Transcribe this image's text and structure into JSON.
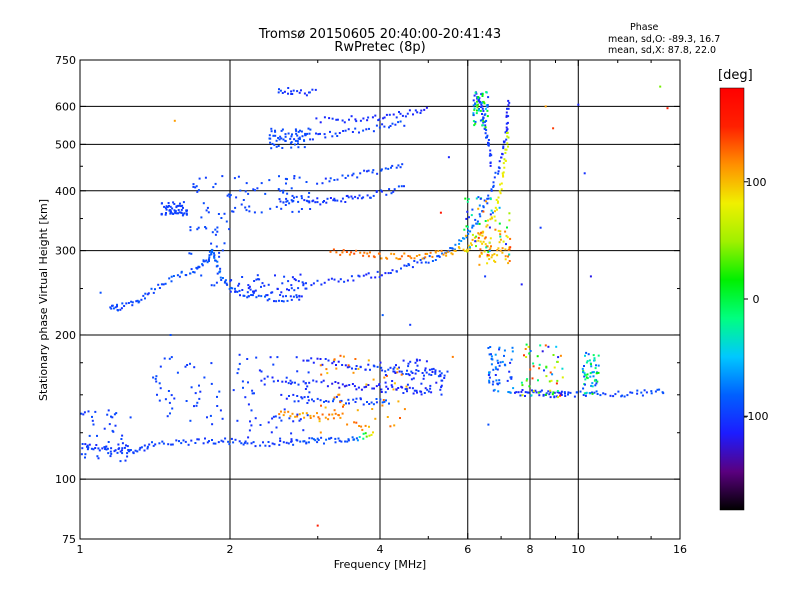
{
  "header": {
    "title_line1": "Tromsø 20150605 20:40:00-20:41:43",
    "title_line2": "RwPretec (8p)"
  },
  "stats": {
    "title": "Phase",
    "line1": "mean, sd,O: -89.3, 16.7",
    "line2": "mean, sd,X:  87.8, 22.0"
  },
  "colorbar": {
    "unit": "[deg]",
    "range": [
      -180,
      180
    ],
    "ticks": [
      {
        "value": 100,
        "label": "100"
      },
      {
        "value": 0,
        "label": "0"
      },
      {
        "value": -100,
        "label": "-100"
      }
    ],
    "colormap": [
      "#000000",
      "#5a007f",
      "#1c1cff",
      "#0060ff",
      "#00c8ff",
      "#00ff80",
      "#00f000",
      "#a0f000",
      "#f0f000",
      "#ff9000",
      "#ff2000",
      "#ff0000"
    ]
  },
  "chart_data": {
    "type": "scatter",
    "xlabel": "Frequency [MHz]",
    "ylabel": "Stationary phase Virtual Height [km]",
    "x_scale": "log",
    "y_scale": "log",
    "xlim": [
      1,
      16
    ],
    "ylim": [
      75,
      750
    ],
    "x_ticks": [
      {
        "value": 1,
        "label": "1"
      },
      {
        "value": 2,
        "label": "2"
      },
      {
        "value": 4,
        "label": "4"
      },
      {
        "value": 6,
        "label": "6"
      },
      {
        "value": 8,
        "label": "8"
      },
      {
        "value": 10,
        "label": "10"
      },
      {
        "value": 16,
        "label": "16"
      }
    ],
    "y_ticks": [
      {
        "value": 75,
        "label": "75"
      },
      {
        "value": 100,
        "label": "100"
      },
      {
        "value": 200,
        "label": "200"
      },
      {
        "value": 300,
        "label": "300"
      },
      {
        "value": 400,
        "label": "400"
      },
      {
        "value": 500,
        "label": "500"
      },
      {
        "value": 600,
        "label": "600"
      },
      {
        "value": 750,
        "label": "750"
      }
    ],
    "x_grid": [
      2,
      4,
      6,
      8,
      10
    ],
    "y_grid": [
      100,
      200,
      300,
      400,
      500,
      600
    ],
    "color_by": "phase [deg]",
    "traces": [
      {
        "points": [
          [
            1.0,
            118
          ],
          [
            1.1,
            116
          ],
          [
            1.2,
            115
          ],
          [
            1.3,
            115
          ],
          [
            1.4,
            118
          ],
          [
            1.6,
            119
          ],
          [
            1.8,
            120
          ],
          [
            2.0,
            120
          ],
          [
            2.2,
            118
          ],
          [
            2.5,
            119
          ],
          [
            2.8,
            120
          ],
          [
            3.0,
            120
          ],
          [
            3.3,
            121
          ],
          [
            3.6,
            122
          ],
          [
            3.9,
            124
          ]
        ],
        "phase": [
          -105,
          -105,
          -100,
          -100,
          -95,
          -95,
          -100,
          -100,
          -100,
          -100,
          -95,
          -90,
          -90,
          -85,
          120
        ]
      },
      {
        "points": [
          [
            1.15,
            228
          ],
          [
            1.2,
            228
          ],
          [
            1.3,
            236
          ],
          [
            1.4,
            248
          ],
          [
            1.55,
            265
          ],
          [
            1.7,
            272
          ],
          [
            1.8,
            285
          ],
          [
            1.85,
            300
          ],
          [
            1.9,
            270
          ],
          [
            2.0,
            248
          ],
          [
            2.2,
            242
          ],
          [
            2.5,
            238
          ],
          [
            2.8,
            240
          ]
        ],
        "phase": [
          -95,
          -95,
          -95,
          -95,
          -90,
          -90,
          -90,
          -85,
          -85,
          -90,
          -90,
          -95,
          -95
        ]
      },
      {
        "points": [
          [
            2.5,
            248
          ],
          [
            3.0,
            256
          ],
          [
            3.5,
            262
          ],
          [
            4.0,
            268
          ],
          [
            4.5,
            278
          ],
          [
            5.0,
            287
          ],
          [
            5.5,
            298
          ],
          [
            5.9,
            318
          ],
          [
            6.3,
            350
          ],
          [
            6.6,
            390
          ],
          [
            6.9,
            440
          ],
          [
            7.1,
            500
          ],
          [
            7.2,
            560
          ],
          [
            7.25,
            620
          ]
        ],
        "phase": [
          -100,
          -100,
          -105,
          -105,
          -100,
          -95,
          -85,
          -65,
          -90,
          -90,
          -100,
          -105,
          -110,
          -110
        ]
      },
      {
        "points": [
          [
            3.2,
            298
          ],
          [
            3.6,
            296
          ],
          [
            4.0,
            293
          ],
          [
            4.5,
            292
          ],
          [
            5.0,
            293
          ],
          [
            5.5,
            297
          ],
          [
            6.0,
            305
          ],
          [
            6.4,
            325
          ],
          [
            6.8,
            360
          ],
          [
            7.0,
            410
          ],
          [
            7.15,
            470
          ],
          [
            7.25,
            540
          ]
        ],
        "phase": [
          130,
          125,
          120,
          120,
          115,
          110,
          100,
          95,
          85,
          80,
          75,
          60
        ]
      },
      {
        "points": [
          [
            2.8,
            178
          ],
          [
            3.2,
            175
          ],
          [
            3.6,
            172
          ],
          [
            4.0,
            170
          ],
          [
            4.5,
            168
          ],
          [
            5.0,
            167
          ],
          [
            5.5,
            166
          ]
        ],
        "phase": [
          -110,
          -110,
          -105,
          -100,
          -100,
          -95,
          -95
        ]
      },
      {
        "points": [
          [
            2.3,
            162
          ],
          [
            2.7,
            160
          ],
          [
            3.2,
            158
          ],
          [
            3.6,
            156
          ],
          [
            4.0,
            156
          ],
          [
            4.5,
            154
          ],
          [
            5.0,
            152
          ]
        ],
        "phase": [
          -110,
          -105,
          -115,
          -110,
          -115,
          -110,
          -100
        ]
      },
      {
        "points": [
          [
            2.6,
            148
          ],
          [
            3.0,
            147
          ],
          [
            3.4,
            146
          ],
          [
            3.8,
            145
          ],
          [
            4.2,
            145
          ]
        ],
        "phase": [
          -105,
          -100,
          -95,
          -95,
          -90
        ]
      },
      {
        "points": [
          [
            2.5,
            138
          ],
          [
            2.8,
            136
          ],
          [
            3.1,
            135
          ],
          [
            3.4,
            136
          ]
        ],
        "phase": [
          115,
          110,
          120,
          115
        ]
      },
      {
        "points": [
          [
            7.5,
            152
          ],
          [
            8.0,
            151
          ],
          [
            8.5,
            151
          ],
          [
            9.0,
            150
          ],
          [
            9.5,
            150
          ],
          [
            10.5,
            151
          ],
          [
            12.0,
            151
          ],
          [
            13.5,
            151
          ],
          [
            15.0,
            152
          ]
        ],
        "phase": [
          -110,
          -105,
          -100,
          -105,
          -100,
          -95,
          -100,
          -95,
          -90
        ]
      },
      {
        "points": [
          [
            2.6,
            512
          ],
          [
            3.0,
            520
          ],
          [
            3.4,
            530
          ],
          [
            4.0,
            542
          ],
          [
            4.5,
            552
          ]
        ],
        "phase": [
          -95,
          -95,
          -100,
          -100,
          -95
        ]
      },
      {
        "points": [
          [
            3.0,
            560
          ],
          [
            3.5,
            565
          ],
          [
            4.0,
            570
          ],
          [
            4.5,
            580
          ],
          [
            5.0,
            595
          ]
        ],
        "phase": [
          -110,
          -110,
          -105,
          -110,
          -110
        ]
      },
      {
        "points": [
          [
            2.5,
            380
          ],
          [
            2.8,
            385
          ],
          [
            3.0,
            380
          ],
          [
            3.3,
            382
          ],
          [
            3.6,
            388
          ],
          [
            4.0,
            395
          ],
          [
            4.5,
            410
          ]
        ],
        "phase": [
          -100,
          -100,
          -105,
          -105,
          -100,
          -100,
          -100
        ]
      },
      {
        "points": [
          [
            3.0,
            420
          ],
          [
            3.5,
            430
          ],
          [
            4.0,
            440
          ],
          [
            4.5,
            455
          ]
        ],
        "phase": [
          -100,
          -100,
          -95,
          -95
        ]
      },
      {
        "points": [
          [
            2.5,
            650
          ],
          [
            2.7,
            645
          ],
          [
            3.0,
            640
          ]
        ],
        "phase": [
          -100,
          -105,
          -100
        ]
      },
      {
        "points": [
          [
            6.2,
            640
          ],
          [
            6.4,
            600
          ],
          [
            6.5,
            550
          ],
          [
            6.6,
            500
          ],
          [
            6.7,
            450
          ]
        ],
        "phase": [
          -100,
          -105,
          -95,
          -100,
          -110
        ]
      }
    ],
    "clusters": [
      {
        "x_range": [
          1.0,
          1.28
        ],
        "y_range": [
          108,
          140
        ],
        "phase_range": [
          -105,
          -90
        ]
      },
      {
        "x_range": [
          1.4,
          2.2
        ],
        "y_range": [
          130,
          182
        ],
        "phase_range": [
          -105,
          -90
        ]
      },
      {
        "x_range": [
          2.1,
          2.9
        ],
        "y_range": [
          120,
          180
        ],
        "phase_range": [
          -110,
          -95
        ]
      },
      {
        "x_range": [
          1.65,
          2.0
        ],
        "y_range": [
          250,
          430
        ],
        "phase_range": [
          -100,
          -90
        ]
      },
      {
        "x_range": [
          1.45,
          1.65
        ],
        "y_range": [
          355,
          380
        ],
        "phase_range": [
          -100,
          -95
        ]
      },
      {
        "x_range": [
          2.0,
          2.9
        ],
        "y_range": [
          360,
          430
        ],
        "phase_range": [
          -100,
          -90
        ]
      },
      {
        "x_range": [
          2.0,
          2.85
        ],
        "y_range": [
          240,
          270
        ],
        "phase_range": [
          -110,
          -95
        ]
      },
      {
        "x_range": [
          2.4,
          2.9
        ],
        "y_range": [
          490,
          540
        ],
        "phase_range": [
          -95,
          -90
        ]
      },
      {
        "x_range": [
          3.0,
          4.6
        ],
        "y_range": [
          125,
          182
        ],
        "phase_range": [
          95,
          135
        ]
      },
      {
        "x_range": [
          4.0,
          5.4
        ],
        "y_range": [
          150,
          180
        ],
        "phase_range": [
          -120,
          -95
        ]
      },
      {
        "x_range": [
          6.6,
          7.4
        ],
        "y_range": [
          150,
          190
        ],
        "phase_range": [
          -110,
          -60
        ]
      },
      {
        "x_range": [
          7.7,
          9.4
        ],
        "y_range": [
          148,
          192
        ],
        "phase_range": [
          -130,
          150
        ]
      },
      {
        "x_range": [
          10.2,
          11.0
        ],
        "y_range": [
          150,
          185
        ],
        "phase_range": [
          -100,
          20
        ]
      },
      {
        "x_range": [
          6.15,
          6.6
        ],
        "y_range": [
          540,
          650
        ],
        "phase_range": [
          -110,
          40
        ]
      },
      {
        "x_range": [
          6.3,
          7.3
        ],
        "y_range": [
          280,
          330
        ],
        "phase_range": [
          80,
          130
        ]
      },
      {
        "x_range": [
          5.9,
          7.3
        ],
        "y_range": [
          290,
          390
        ],
        "phase_range": [
          -120,
          140
        ]
      }
    ],
    "scattered_points": [
      {
        "x": 1.55,
        "y": 560,
        "phase": 110
      },
      {
        "x": 3.0,
        "y": 80,
        "phase": 150
      },
      {
        "x": 8.6,
        "y": 600,
        "phase": 110
      },
      {
        "x": 8.9,
        "y": 540,
        "phase": 140
      },
      {
        "x": 10.0,
        "y": 605,
        "phase": -110
      },
      {
        "x": 10.3,
        "y": 435,
        "phase": -105
      },
      {
        "x": 10.6,
        "y": 265,
        "phase": -120
      },
      {
        "x": 14.6,
        "y": 660,
        "phase": 40
      },
      {
        "x": 15.1,
        "y": 595,
        "phase": 150
      },
      {
        "x": 5.3,
        "y": 360,
        "phase": 160
      },
      {
        "x": 5.5,
        "y": 470,
        "phase": -110
      },
      {
        "x": 6.5,
        "y": 265,
        "phase": -100
      },
      {
        "x": 7.3,
        "y": 305,
        "phase": 140
      },
      {
        "x": 7.7,
        "y": 255,
        "phase": -115
      },
      {
        "x": 8.4,
        "y": 335,
        "phase": -100
      },
      {
        "x": 4.05,
        "y": 220,
        "phase": -85
      },
      {
        "x": 6.6,
        "y": 130,
        "phase": -90
      },
      {
        "x": 1.1,
        "y": 245,
        "phase": -90
      },
      {
        "x": 1.52,
        "y": 200,
        "phase": -90
      },
      {
        "x": 4.6,
        "y": 210,
        "phase": -100
      },
      {
        "x": 5.6,
        "y": 180,
        "phase": 120
      }
    ]
  }
}
